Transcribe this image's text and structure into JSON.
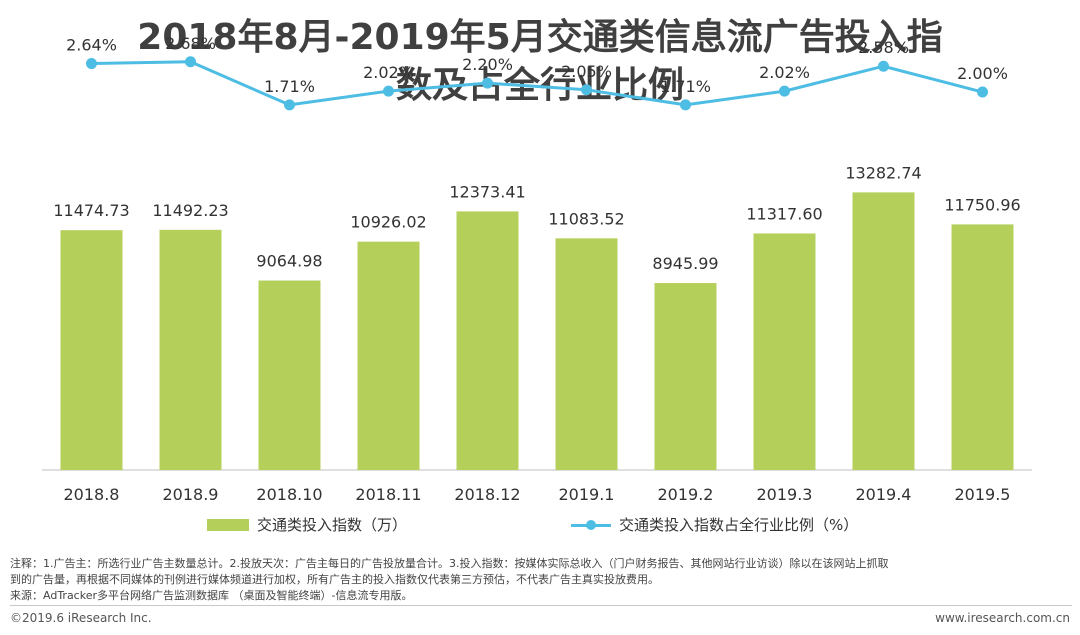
{
  "title": {
    "line1": "2018年8月-2019年5月交通类信息流广告投入指",
    "line2": "数及占全行业比例"
  },
  "colors": {
    "bar": "#b5cf5b",
    "line": "#4dbde4",
    "axis": "#bfbfbf",
    "text": "#333333"
  },
  "chart_data": {
    "type": "bar",
    "categories": [
      "2018.8",
      "2018.9",
      "2018.10",
      "2018.11",
      "2018.12",
      "2019.1",
      "2019.2",
      "2019.3",
      "2019.4",
      "2019.5"
    ],
    "series": [
      {
        "name": "交通类投入指数（万）",
        "type": "bar",
        "values": [
          11474.73,
          11492.23,
          9064.98,
          10926.02,
          12373.41,
          11083.52,
          8945.99,
          11317.6,
          13282.74,
          11750.96
        ],
        "labels": [
          "11474.73",
          "11492.23",
          "9064.98",
          "10926.02",
          "12373.41",
          "11083.52",
          "8945.99",
          "11317.60",
          "13282.74",
          "11750.96"
        ]
      },
      {
        "name": "交通类投入指数占全行业比例（%）",
        "type": "line",
        "values": [
          2.64,
          2.68,
          1.71,
          2.02,
          2.2,
          2.05,
          1.71,
          2.02,
          2.58,
          2.0
        ],
        "labels": [
          "2.64%",
          "2.68%",
          "1.71%",
          "2.02%",
          "2.20%",
          "2.05%",
          "1.71%",
          "2.02%",
          "2.58%",
          "2.00%"
        ]
      }
    ],
    "ylim_bar": [
      0,
      20000
    ],
    "ylim_line": [
      -6.5,
      2.9
    ],
    "grid": false,
    "legend_position": "bottom"
  },
  "notes": {
    "line1": "注释：1.广告主：所选行业广告主数量总计。2.投放天次：广告主每日的广告投放量合计。3.投入指数：按媒体实际总收入（门户财务报告、其他网站行业访谈）除以在该网站上抓取",
    "line2": "到的广告量，再根据不同媒体的刊例进行媒体频道进行加权，所有广告主的投入指数仅代表第三方预估，不代表广告主真实投放费用。",
    "line3": "来源：AdTracker多平台网络广告监测数据库 （桌面及智能终端）-信息流专用版。"
  },
  "footer": {
    "copyright": "©2019.6 iResearch Inc.",
    "website": "www.iresearch.com.cn"
  }
}
